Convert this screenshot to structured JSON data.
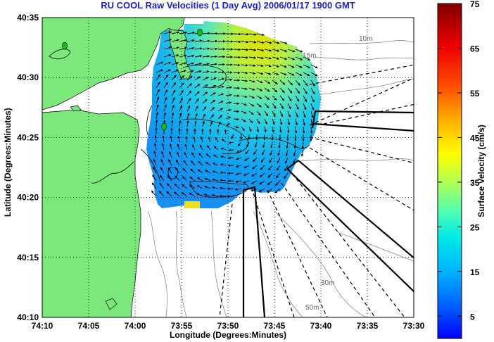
{
  "title": "RU COOL Raw Velocities (1 Day Avg) 2006/01/17 1900 GMT",
  "x_axis": {
    "label": "Longitude (Degrees:Minutes)",
    "ticks": [
      "74:10",
      "74:05",
      "74:00",
      "73:55",
      "73:50",
      "73:45",
      "73:40",
      "73:35",
      "73:30"
    ]
  },
  "y_axis": {
    "label": "Latitude (Degrees:Minutes)",
    "ticks": [
      "40:35",
      "40:30",
      "40:25",
      "40:20",
      "40:15",
      "40:10"
    ]
  },
  "colorbar": {
    "label": "Surface Velocity (cm/s)",
    "ticks": [
      "75",
      "65",
      "55",
      "45",
      "35",
      "25",
      "15",
      "5"
    ],
    "min": 0,
    "max": 75,
    "colormap": "jet"
  },
  "contour_labels": [
    "10m",
    "15m",
    "30m",
    "50m"
  ],
  "colors": {
    "land": "#7ce87c",
    "title": "#1a24c8"
  }
}
